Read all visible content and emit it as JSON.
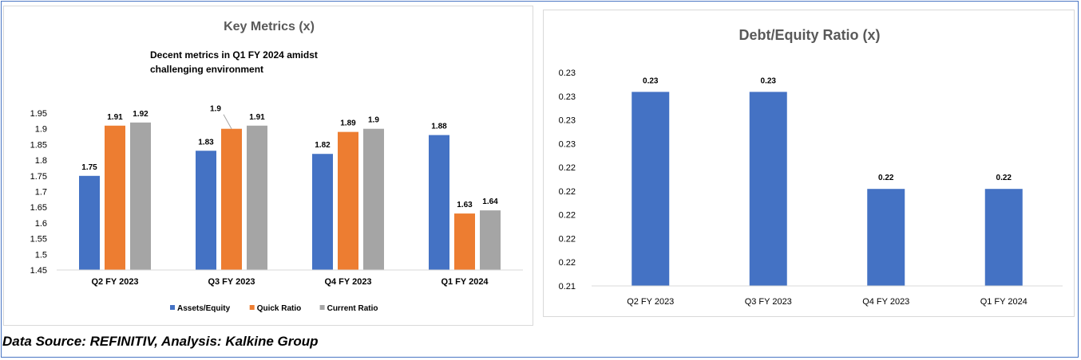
{
  "source_note": "Data Source: REFINITIV, Analysis: Kalkine Group",
  "colors": {
    "assets_equity": "#4472c4",
    "quick_ratio": "#ed7d31",
    "current_ratio": "#a5a5a5",
    "debt_equity": "#4472c4",
    "frame": "#4a76c4"
  },
  "chart_data": [
    {
      "type": "bar",
      "title": "Key Metrics (x)",
      "subtitle": [
        "Decent metrics in Q1 FY 2024 amidst",
        "challenging environment"
      ],
      "categories": [
        "Q2 FY 2023",
        "Q3 FY 2023",
        "Q4 FY 2023",
        "Q1 FY 2024"
      ],
      "series": [
        {
          "name": "Assets/Equity",
          "values": [
            1.75,
            1.83,
            1.82,
            1.88
          ]
        },
        {
          "name": "Quick Ratio",
          "values": [
            1.91,
            1.9,
            1.89,
            1.63
          ]
        },
        {
          "name": "Current Ratio",
          "values": [
            1.92,
            1.91,
            1.9,
            1.64
          ]
        }
      ],
      "yticks": [
        "1.45",
        "1.5",
        "1.55",
        "1.6",
        "1.65",
        "1.7",
        "1.75",
        "1.8",
        "1.85",
        "1.9",
        "1.95"
      ],
      "ylim": [
        1.45,
        1.95
      ],
      "legend": "bottom",
      "grid": false
    },
    {
      "type": "bar",
      "title": "Debt/Equity Ratio (x)",
      "categories": [
        "Q2 FY 2023",
        "Q3 FY 2023",
        "Q4 FY 2023",
        "Q1 FY 2024"
      ],
      "series": [
        {
          "values": [
            0.23,
            0.23,
            0.22,
            0.22
          ],
          "labels": [
            "0.23",
            "0.23",
            "0.22",
            "0.22"
          ]
        }
      ],
      "yticks": [
        "0.21",
        "0.22",
        "0.22",
        "0.22",
        "0.22",
        "0.22",
        "0.23",
        "0.23",
        "0.23",
        "0.23"
      ],
      "grid": false,
      "legend": "none"
    }
  ]
}
